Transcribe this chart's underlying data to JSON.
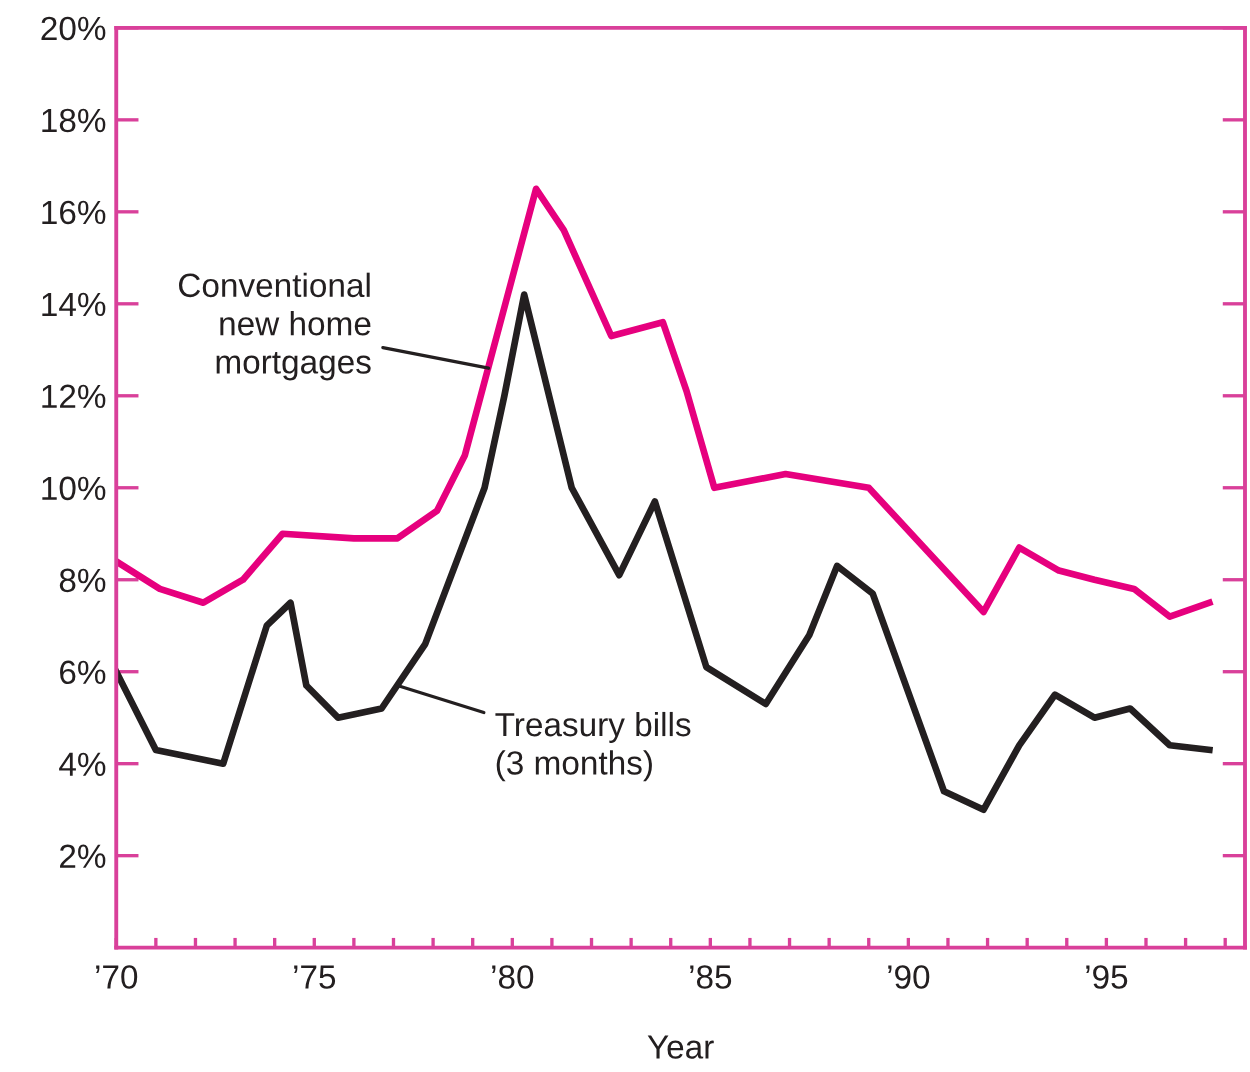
{
  "chart_data": {
    "type": "line",
    "xlabel": "Year",
    "xlim": [
      1970,
      1998.5
    ],
    "xticks": [
      {
        "value": 1970,
        "label": "’70"
      },
      {
        "value": 1971,
        "label": null
      },
      {
        "value": 1972,
        "label": null
      },
      {
        "value": 1973,
        "label": null
      },
      {
        "value": 1974,
        "label": null
      },
      {
        "value": 1975,
        "label": "’75"
      },
      {
        "value": 1976,
        "label": null
      },
      {
        "value": 1977,
        "label": null
      },
      {
        "value": 1978,
        "label": null
      },
      {
        "value": 1979,
        "label": null
      },
      {
        "value": 1980,
        "label": "’80"
      },
      {
        "value": 1981,
        "label": null
      },
      {
        "value": 1982,
        "label": null
      },
      {
        "value": 1983,
        "label": null
      },
      {
        "value": 1984,
        "label": null
      },
      {
        "value": 1985,
        "label": "’85"
      },
      {
        "value": 1986,
        "label": null
      },
      {
        "value": 1987,
        "label": null
      },
      {
        "value": 1988,
        "label": null
      },
      {
        "value": 1989,
        "label": null
      },
      {
        "value": 1990,
        "label": "’90"
      },
      {
        "value": 1991,
        "label": null
      },
      {
        "value": 1992,
        "label": null
      },
      {
        "value": 1993,
        "label": null
      },
      {
        "value": 1994,
        "label": null
      },
      {
        "value": 1995,
        "label": "’95"
      },
      {
        "value": 1996,
        "label": null
      },
      {
        "value": 1997,
        "label": null
      },
      {
        "value": 1998,
        "label": null
      }
    ],
    "ylim": [
      0,
      20
    ],
    "yticks": [
      {
        "value": 2,
        "label": "2%"
      },
      {
        "value": 4,
        "label": "4%"
      },
      {
        "value": 6,
        "label": "6%"
      },
      {
        "value": 8,
        "label": "8%"
      },
      {
        "value": 10,
        "label": "10%"
      },
      {
        "value": 12,
        "label": "12%"
      },
      {
        "value": 14,
        "label": "14%"
      },
      {
        "value": 16,
        "label": "16%"
      },
      {
        "value": 18,
        "label": "18%"
      },
      {
        "value": 20,
        "label": "20%"
      }
    ],
    "grid": false,
    "legend": false,
    "marker": "none",
    "line_style": "solid",
    "series": [
      {
        "color": "#e6007e",
        "x": [
          1970,
          1971.1,
          1972.2,
          1973.2,
          1974.2,
          1976.0,
          1977.1,
          1978.1,
          1978.8,
          1980.6,
          1981.3,
          1982.5,
          1983.8,
          1984.4,
          1985.1,
          1986.9,
          1989.0,
          1991.9,
          1992.8,
          1993.8,
          1994.7,
          1995.7,
          1996.6,
          1997.6
        ],
        "values": [
          8.4,
          7.8,
          7.5,
          8.0,
          9.0,
          8.9,
          8.9,
          9.5,
          10.7,
          16.5,
          15.6,
          13.3,
          13.6,
          12.1,
          10.0,
          10.3,
          10.0,
          7.3,
          8.7,
          8.2,
          8.0,
          7.8,
          7.2,
          7.5
        ]
      },
      {
        "color": "#231f20",
        "x": [
          1970,
          1971.0,
          1972.7,
          1973.8,
          1974.4,
          1974.8,
          1975.6,
          1976.7,
          1977.8,
          1979.3,
          1979.8,
          1980.3,
          1981.5,
          1982.7,
          1983.6,
          1984.9,
          1986.4,
          1987.5,
          1988.2,
          1989.1,
          1990.9,
          1991.9,
          1992.8,
          1993.7,
          1994.7,
          1995.6,
          1996.6,
          1997.6
        ],
        "values": [
          6.0,
          4.3,
          4.0,
          7.0,
          7.5,
          5.7,
          5.0,
          5.2,
          6.6,
          10.0,
          12.0,
          14.2,
          10.0,
          8.1,
          9.7,
          6.1,
          5.3,
          6.8,
          8.3,
          7.7,
          3.4,
          3.0,
          4.4,
          5.5,
          5.0,
          5.2,
          4.4,
          4.3
        ]
      }
    ],
    "annotations": [
      {
        "text": "Conventional\nnew home\nmortgages",
        "x": 1979.4,
        "y": 12.6
      },
      {
        "text": "Treasury bills\n(3 months)",
        "x": 1977.1,
        "y": 5.7
      }
    ]
  }
}
